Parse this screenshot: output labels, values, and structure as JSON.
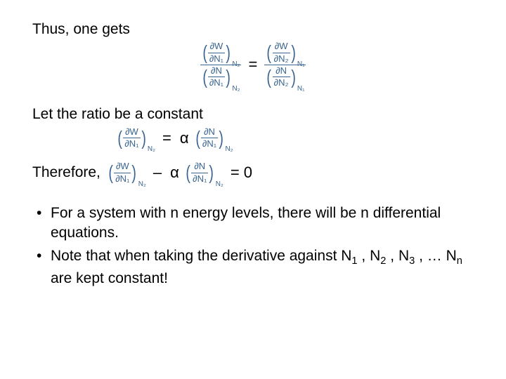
{
  "math_color": "#39648f",
  "text_color": "#000000",
  "partial_symbol": "∂",
  "W": "W",
  "N": "N",
  "N1": "N₁",
  "N2": "N₂",
  "equals": "=",
  "alpha": "α",
  "minus": "–",
  "zero": "= 0",
  "line1": "Thus, one gets",
  "line2": "Let the ratio be a constant",
  "line3": "Therefore,",
  "bullet1_a": "For a system with n energy levels, there will be n differential equations.",
  "bullet2_a": "Note that when taking the derivative against N",
  "bullet2_sub1": "1",
  "bullet2_b": " , N",
  "bullet2_sub2": "2",
  "bullet2_c": " , N",
  "bullet2_sub3": "3",
  "bullet2_d": " , … N",
  "bullet2_subn": "n",
  "bullet2_e": " are kept constant!"
}
